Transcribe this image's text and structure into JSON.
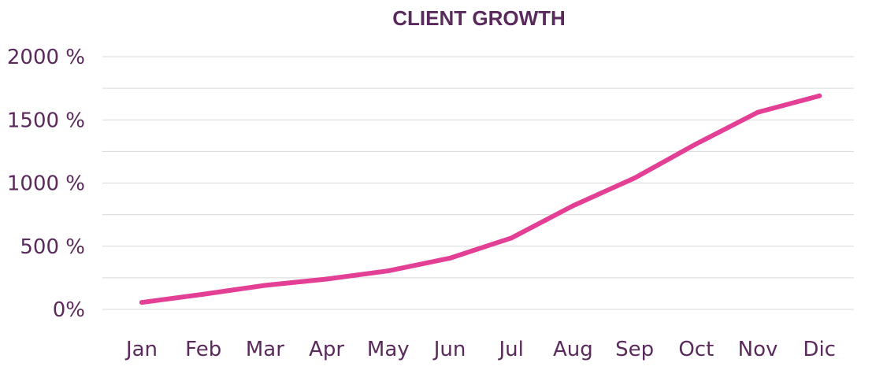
{
  "chart_data": {
    "type": "line",
    "title": "CLIENT GROWTH",
    "xlabel": "",
    "ylabel": "",
    "categories": [
      "Jan",
      "Feb",
      "Mar",
      "Apr",
      "May",
      "Jun",
      "Jul",
      "Aug",
      "Sep",
      "Oct",
      "Nov",
      "Dic"
    ],
    "series": [
      {
        "values": [
          55,
          120,
          190,
          240,
          305,
          405,
          565,
          820,
          1040,
          1310,
          1560,
          1690
        ]
      }
    ],
    "ylim": [
      0,
      2000
    ],
    "y_ticks": [
      0,
      500,
      1000,
      1500,
      2000
    ],
    "y_tick_labels": [
      "0%",
      "500 %",
      "1000 %",
      "1500 %",
      "2000 %"
    ],
    "grid": true,
    "minor_grid": true,
    "legend": "none",
    "colors": {
      "line": "#e33f95",
      "text": "#5b2a5c",
      "grid": "#d9d9d9"
    }
  }
}
